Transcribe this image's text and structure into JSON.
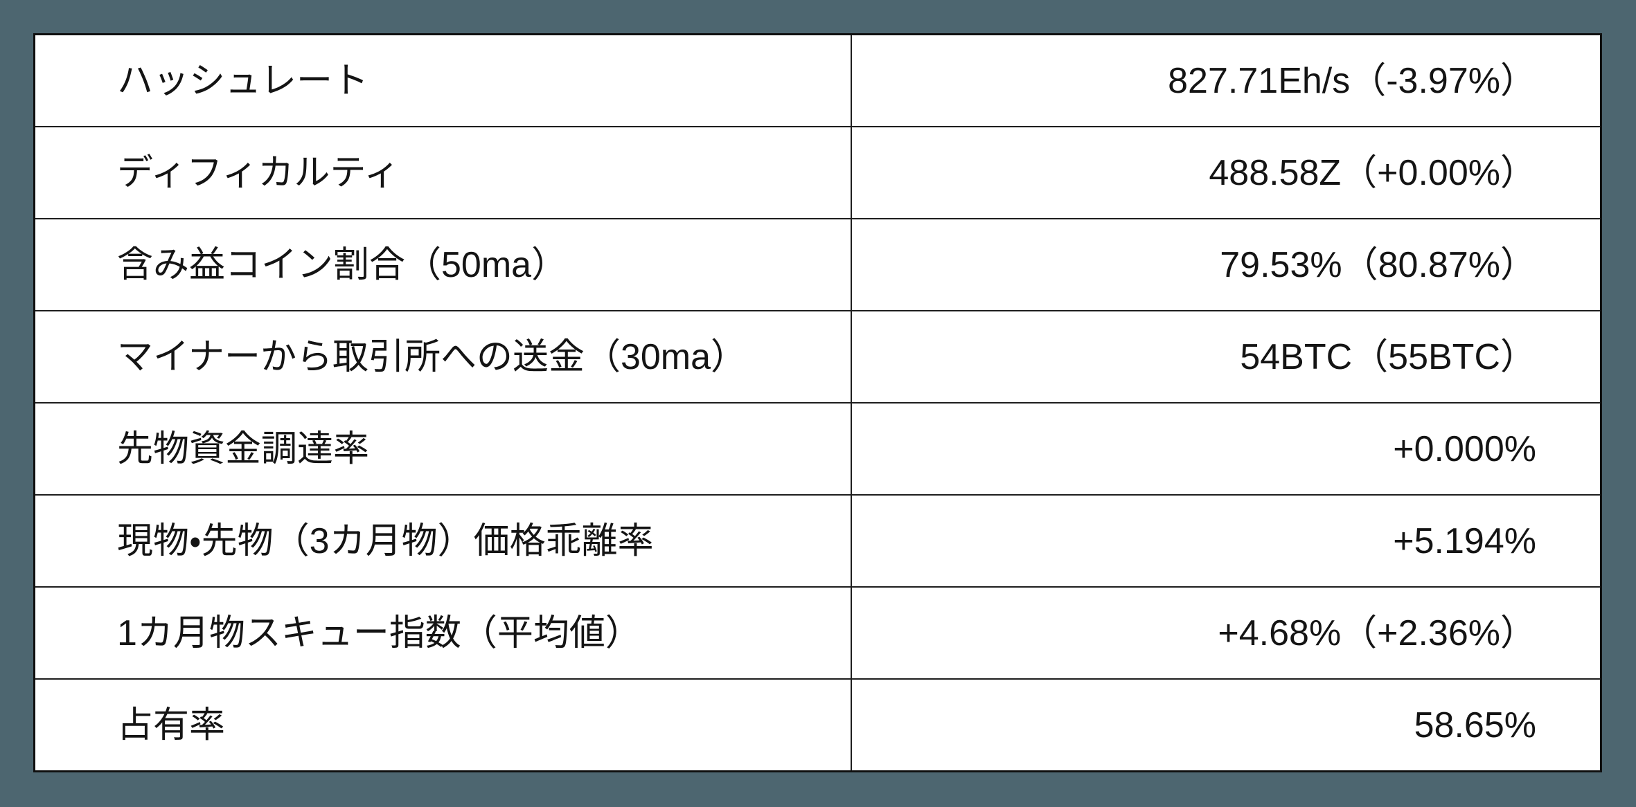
{
  "page": {
    "background_color": "#4D6670",
    "table_background": "#FFFFFF",
    "border_color": "#0F0F0F",
    "grid_line_color": "#1D1D1D",
    "text_color": "#141414"
  },
  "chart_data": {
    "type": "table",
    "title": "",
    "rows": [
      {
        "label": "ハッシュレート",
        "value": "827.71Eh/s（-3.97%）"
      },
      {
        "label": "ディフィカルティ",
        "value": "488.58Z（+0.00%）"
      },
      {
        "label": "含み益コイン割合（50ma）",
        "value": "79.53%（80.87%）"
      },
      {
        "label": "マイナーから取引所への送金（30ma）",
        "value": "54BTC（55BTC）"
      },
      {
        "label": "先物資金調達率",
        "value": "+0.000%"
      },
      {
        "label": "現物・先物（3カ月物）価格乖離率",
        "value": "+5.194%"
      },
      {
        "label": "1カ月物スキュー指数（平均値）",
        "value": "+4.68%（+2.36%）"
      },
      {
        "label": "占有率",
        "value": "58.65%"
      }
    ]
  }
}
